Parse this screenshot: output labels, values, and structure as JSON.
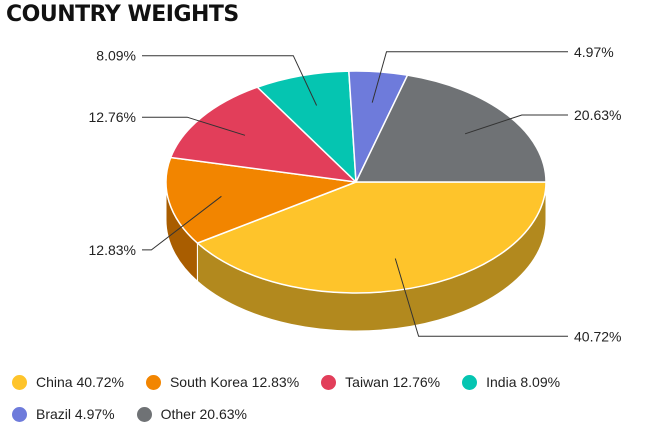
{
  "title": "COUNTRY WEIGHTS",
  "chart_data": {
    "type": "pie",
    "title": "COUNTRY WEIGHTS",
    "categories": [
      "China",
      "South Korea",
      "Taiwan",
      "India",
      "Brazil",
      "Other"
    ],
    "values": [
      40.72,
      12.83,
      12.76,
      8.09,
      4.97,
      20.63
    ],
    "data_labels": [
      "40.72%",
      "12.83%",
      "12.76%",
      "8.09%",
      "4.97%",
      "20.63%"
    ],
    "colors": [
      "#fec42b",
      "#f28500",
      "#e23e5a",
      "#05c5b1",
      "#6e7bdb",
      "#6f7275"
    ],
    "legend_position": "bottom",
    "style": "3d"
  },
  "legend": {
    "rows": [
      [
        {
          "label": "China 40.72%",
          "color": "#fec42b"
        },
        {
          "label": "South Korea 12.83%",
          "color": "#f28500"
        },
        {
          "label": "Taiwan 12.76%",
          "color": "#e23e5a"
        },
        {
          "label": "India 8.09%",
          "color": "#05c5b1"
        }
      ],
      [
        {
          "label": "Brazil 4.97%",
          "color": "#6e7bdb"
        },
        {
          "label": "Other 20.63%",
          "color": "#6f7275"
        }
      ]
    ]
  }
}
